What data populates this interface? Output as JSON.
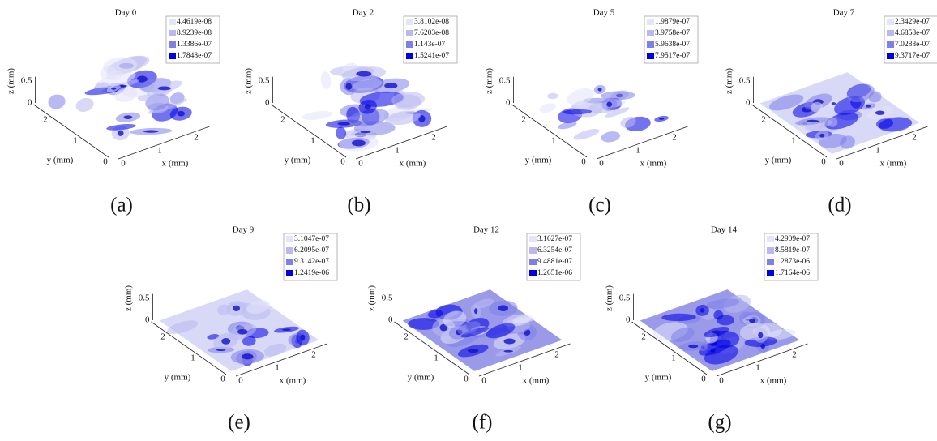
{
  "axes": {
    "x_label": "x (mm)",
    "y_label": "y (mm)",
    "z_label": "z (mm)",
    "x_ticks": [
      "0",
      "1",
      "2"
    ],
    "y_ticks": [
      "0",
      "1",
      "2"
    ],
    "z_ticks": [
      "0",
      "0.5"
    ]
  },
  "panels": [
    {
      "title": "Day 0",
      "legend": [
        "4.4619e-08",
        "8.9239e-08",
        "1.3386e-07",
        "1.7848e-07"
      ],
      "caption": "(a)"
    },
    {
      "title": "Day 2",
      "legend": [
        "3.8102e-08",
        "7.6203e-08",
        "1.143e-07",
        "1.5241e-07"
      ],
      "caption": "(b)"
    },
    {
      "title": "Day 5",
      "legend": [
        "1.9879e-07",
        "3.9758e-07",
        "5.9638e-07",
        "7.9517e-07"
      ],
      "caption": "(c)"
    },
    {
      "title": "Day 7",
      "legend": [
        "2.3429e-07",
        "4.6858e-07",
        "7.0288e-07",
        "9.3717e-07"
      ],
      "caption": "(d)"
    },
    {
      "title": "Day 9",
      "legend": [
        "3.1047e-07",
        "6.2095e-07",
        "9.3142e-07",
        "1.2419e-06"
      ],
      "caption": "(e)"
    },
    {
      "title": "Day 12",
      "legend": [
        "3.1627e-07",
        "6.3254e-07",
        "9.4881e-07",
        "1.2651e-06"
      ],
      "caption": "(f)"
    },
    {
      "title": "Day 14",
      "legend": [
        "4.2909e-07",
        "8.5819e-07",
        "1.2873e-06",
        "1.7164e-06"
      ],
      "caption": "(g)"
    }
  ]
}
